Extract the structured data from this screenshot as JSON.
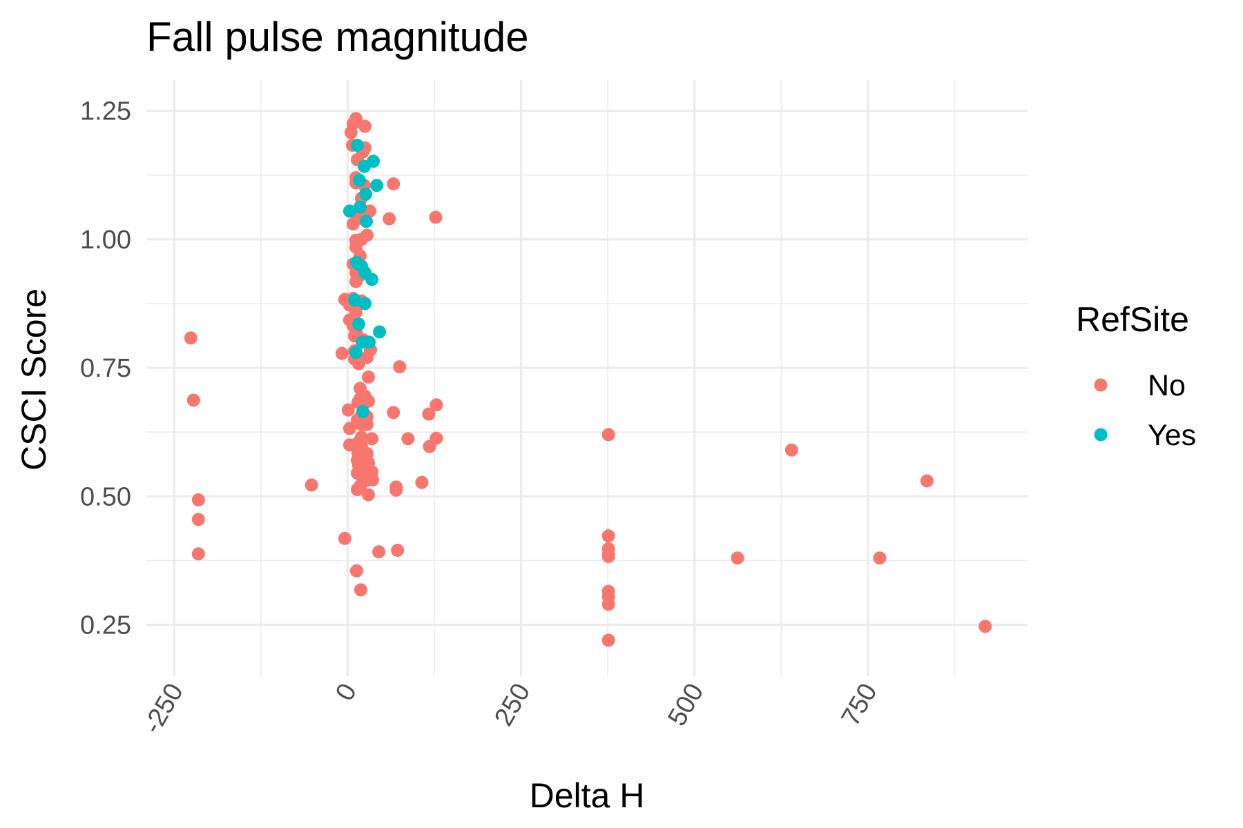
{
  "chart_data": {
    "type": "scatter",
    "title": "Fall pulse magnitude",
    "xlabel": "Delta H",
    "ylabel": "CSCI Score",
    "xlim": [
      -290,
      980
    ],
    "ylim": [
      0.15,
      1.31
    ],
    "x_ticks": [
      -250,
      0,
      250,
      500,
      750
    ],
    "x_tick_labels": [
      "-250",
      "0",
      "250",
      "500",
      "750"
    ],
    "y_ticks": [
      0.25,
      0.5,
      0.75,
      1.0,
      1.25
    ],
    "y_tick_labels": [
      "0.25",
      "0.50",
      "0.75",
      "1.00",
      "1.25"
    ],
    "grid": true,
    "legend": {
      "title": "RefSite",
      "position": "right",
      "entries": [
        {
          "label": "No",
          "color": "#F8766D"
        },
        {
          "label": "Yes",
          "color": "#00BFC4"
        }
      ]
    },
    "series": [
      {
        "name": "No",
        "color": "#F8766D",
        "points": [
          [
            -226,
            0.808
          ],
          [
            -222,
            0.687
          ],
          [
            -215,
            0.493
          ],
          [
            -215,
            0.455
          ],
          [
            -215,
            0.388
          ],
          [
            -52,
            0.522
          ],
          [
            -4,
            0.418
          ],
          [
            -8,
            0.778
          ],
          [
            -4,
            0.883
          ],
          [
            1,
            0.668
          ],
          [
            3,
            0.632
          ],
          [
            3,
            0.6
          ],
          [
            3,
            0.872
          ],
          [
            3,
            0.843
          ],
          [
            5,
            1.208
          ],
          [
            7,
            1.183
          ],
          [
            8,
            1.225
          ],
          [
            8,
            1.03
          ],
          [
            8,
            0.952
          ],
          [
            8,
            0.885
          ],
          [
            8,
            0.832
          ],
          [
            10,
            0.812
          ],
          [
            10,
            0.767
          ],
          [
            10,
            0.783
          ],
          [
            12,
            1.235
          ],
          [
            12,
            1.12
          ],
          [
            12,
            1.11
          ],
          [
            12,
            0.998
          ],
          [
            12,
            0.985
          ],
          [
            12,
            0.935
          ],
          [
            12,
            0.918
          ],
          [
            12,
            0.858
          ],
          [
            12,
            0.82
          ],
          [
            13,
            0.355
          ],
          [
            14,
            1.155
          ],
          [
            14,
            1.045
          ],
          [
            14,
            0.648
          ],
          [
            14,
            0.603
          ],
          [
            14,
            0.57
          ],
          [
            14,
            0.545
          ],
          [
            14,
            0.513
          ],
          [
            15,
            0.683
          ],
          [
            15,
            0.585
          ],
          [
            16,
            0.758
          ],
          [
            16,
            0.56
          ],
          [
            18,
            1.06
          ],
          [
            18,
            0.968
          ],
          [
            18,
            0.93
          ],
          [
            18,
            0.71
          ],
          [
            18,
            0.69
          ],
          [
            18,
            0.52
          ],
          [
            19,
            0.318
          ],
          [
            20,
            1.08
          ],
          [
            20,
            1.0
          ],
          [
            20,
            0.88
          ],
          [
            20,
            0.658
          ],
          [
            20,
            0.64
          ],
          [
            20,
            0.615
          ],
          [
            20,
            0.597
          ],
          [
            20,
            0.572
          ],
          [
            22,
            1.17
          ],
          [
            22,
            1.04
          ],
          [
            22,
            0.805
          ],
          [
            22,
            0.553
          ],
          [
            22,
            0.533
          ],
          [
            24,
            1.105
          ],
          [
            24,
            0.64
          ],
          [
            24,
            0.56
          ],
          [
            25,
            1.22
          ],
          [
            25,
            1.178
          ],
          [
            25,
            0.695
          ],
          [
            25,
            0.585
          ],
          [
            25,
            0.555
          ],
          [
            26,
            0.545
          ],
          [
            26,
            0.53
          ],
          [
            28,
            0.77
          ],
          [
            28,
            0.655
          ],
          [
            28,
            0.64
          ],
          [
            28,
            0.583
          ],
          [
            28,
            1.008
          ],
          [
            30,
            0.732
          ],
          [
            30,
            0.685
          ],
          [
            30,
            0.565
          ],
          [
            30,
            0.503
          ],
          [
            32,
            1.055
          ],
          [
            33,
            0.785
          ],
          [
            35,
            0.612
          ],
          [
            35,
            0.548
          ],
          [
            36,
            0.532
          ],
          [
            45,
            0.392
          ],
          [
            60,
            1.04
          ],
          [
            66,
            1.108
          ],
          [
            66,
            0.663
          ],
          [
            70,
            0.518
          ],
          [
            70,
            0.512
          ],
          [
            72,
            0.395
          ],
          [
            75,
            0.752
          ],
          [
            87,
            0.612
          ],
          [
            107,
            0.527
          ],
          [
            117,
            0.66
          ],
          [
            118,
            0.597
          ],
          [
            127,
            1.043
          ],
          [
            128,
            0.678
          ],
          [
            128,
            0.613
          ],
          [
            376,
            0.62
          ],
          [
            376,
            0.423
          ],
          [
            376,
            0.398
          ],
          [
            376,
            0.387
          ],
          [
            376,
            0.383
          ],
          [
            376,
            0.315
          ],
          [
            376,
            0.305
          ],
          [
            376,
            0.29
          ],
          [
            376,
            0.22
          ],
          [
            562,
            0.38
          ],
          [
            640,
            0.59
          ],
          [
            767,
            0.38
          ],
          [
            835,
            0.53
          ],
          [
            919,
            0.247
          ]
        ]
      },
      {
        "name": "Yes",
        "color": "#00BFC4",
        "points": [
          [
            3,
            1.055
          ],
          [
            10,
            0.882
          ],
          [
            12,
            0.78
          ],
          [
            13,
            0.955
          ],
          [
            14,
            1.183
          ],
          [
            16,
            0.835
          ],
          [
            17,
            1.115
          ],
          [
            18,
            1.063
          ],
          [
            20,
            0.948
          ],
          [
            21,
            0.8
          ],
          [
            22,
            0.665
          ],
          [
            24,
            1.142
          ],
          [
            25,
            0.935
          ],
          [
            25,
            0.875
          ],
          [
            26,
            1.088
          ],
          [
            27,
            1.035
          ],
          [
            31,
            0.8
          ],
          [
            35,
            0.922
          ],
          [
            37,
            1.152
          ],
          [
            42,
            1.105
          ],
          [
            46,
            0.82
          ]
        ]
      }
    ]
  }
}
